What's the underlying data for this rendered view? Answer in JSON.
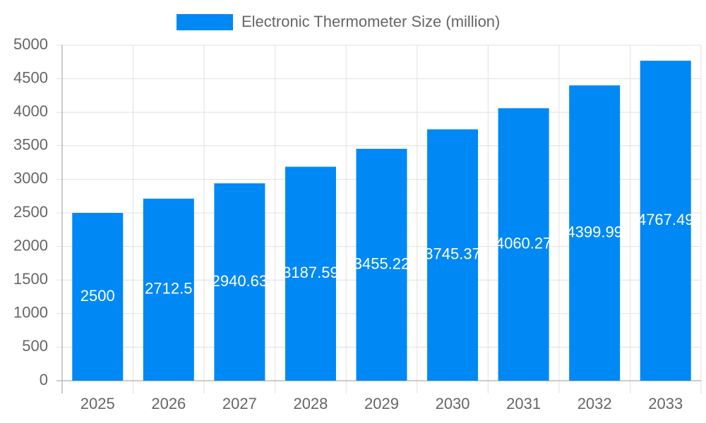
{
  "chart_data": {
    "type": "bar",
    "legend": "Electronic Thermometer Size (million)",
    "categories": [
      "2025",
      "2026",
      "2027",
      "2028",
      "2029",
      "2030",
      "2031",
      "2032",
      "2033"
    ],
    "values": [
      2500,
      2712.5,
      2940.63,
      3187.59,
      3455.22,
      3745.37,
      4060.27,
      4399.99,
      4767.49
    ],
    "color": "#0088f5",
    "ylim": [
      0,
      5000
    ],
    "yticks": [
      0,
      500,
      1000,
      1500,
      2000,
      2500,
      3000,
      3500,
      4000,
      4500,
      5000
    ],
    "grid": true
  }
}
